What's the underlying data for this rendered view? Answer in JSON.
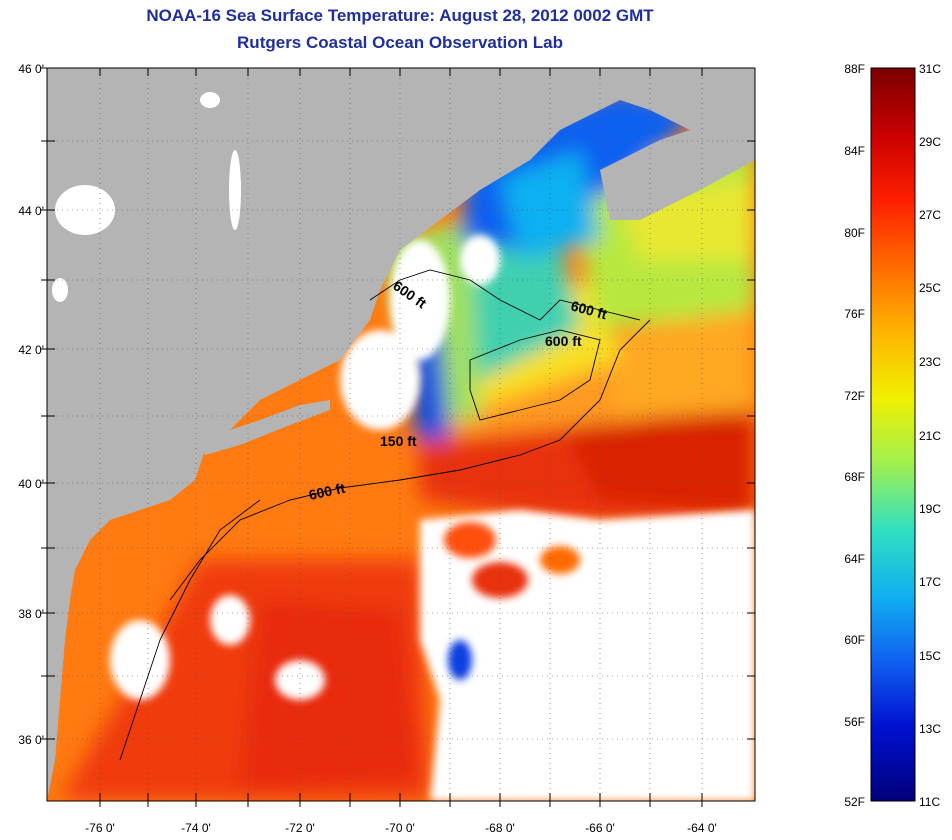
{
  "title": "NOAA-16 Sea Surface Temperature:  August 28, 2012 0002 GMT",
  "subtitle": "Rutgers Coastal Ocean Observation Lab",
  "lat_labels": [
    "46 0'",
    "44 0'",
    "42 0'",
    "40 0'",
    "38 0'",
    "36 0'"
  ],
  "lon_labels": [
    "-76 0'",
    "-74 0'",
    "-72 0'",
    "-70 0'",
    "-68 0'",
    "-66 0'",
    "-64 0'"
  ],
  "contour_labels": [
    "600 ft",
    "600 ft",
    "600 ft",
    "150 ft",
    "600 ft"
  ],
  "colorbar": {
    "f_labels": [
      "88F",
      "84F",
      "80F",
      "76F",
      "72F",
      "68F",
      "64F",
      "60F",
      "56F",
      "52F"
    ],
    "c_labels": [
      "31C",
      "29C",
      "27C",
      "25C",
      "23C",
      "21C",
      "19C",
      "17C",
      "15C",
      "13C",
      "11C"
    ],
    "colors": [
      "#7a0000",
      "#c80000",
      "#ff1e00",
      "#ff6a00",
      "#ffb400",
      "#f0f000",
      "#a0f050",
      "#30e0c0",
      "#10b0f0",
      "#1060f0",
      "#0010d0",
      "#00007a"
    ]
  },
  "colors": {
    "land": "#b4b4b4",
    "cloud": "#ffffff",
    "title": "#1f2f9f"
  }
}
